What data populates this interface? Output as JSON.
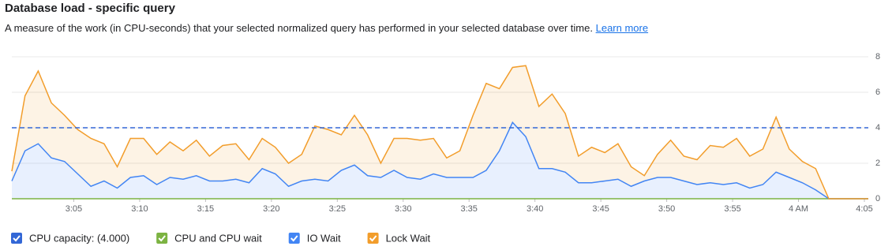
{
  "chart_data": {
    "type": "stacked-area",
    "title": "Database load - specific query",
    "subtitle": "A measure of the work (in CPU-seconds) that your selected normalized query has performed in your selected database over time.",
    "link_text": "Learn more",
    "x": [
      0.3,
      1.3,
      2.3,
      3.3,
      4.3,
      5.3,
      6.3,
      7.3,
      8.3,
      9.3,
      10.3,
      11.3,
      12.3,
      13.3,
      14.3,
      15.3,
      16.3,
      17.3,
      18.3,
      19.3,
      20.3,
      21.3,
      22.3,
      23.3,
      24.3,
      25.3,
      26.3,
      27.3,
      28.3,
      29.3,
      30.3,
      31.3,
      32.3,
      33.3,
      34.3,
      35.3,
      36.3,
      37.3,
      38.3,
      39.3,
      40.3,
      41.3,
      42.3,
      43.3,
      44.3,
      45.3,
      46.3,
      47.3,
      48.3,
      49.3,
      50.3,
      51.3,
      52.3,
      53.3,
      54.3,
      55.3,
      56.3,
      57.3,
      58.3,
      59.3,
      60.3,
      61.3,
      62.3,
      63.3,
      64.3,
      65.3
    ],
    "xlim": [
      0.3,
      65.3
    ],
    "xticks": [
      {
        "value": 5,
        "label": "3:05"
      },
      {
        "value": 10,
        "label": "3:10"
      },
      {
        "value": 15,
        "label": "3:15"
      },
      {
        "value": 20,
        "label": "3:20"
      },
      {
        "value": 25,
        "label": "3:25"
      },
      {
        "value": 30,
        "label": "3:30"
      },
      {
        "value": 35,
        "label": "3:35"
      },
      {
        "value": 40,
        "label": "3:40"
      },
      {
        "value": 45,
        "label": "3:45"
      },
      {
        "value": 50,
        "label": "3:50"
      },
      {
        "value": 55,
        "label": "3:55"
      },
      {
        "value": 60,
        "label": "4 AM"
      },
      {
        "value": 65,
        "label": "4:05"
      }
    ],
    "ylim": [
      0,
      8
    ],
    "yticks": [
      0,
      2,
      4,
      6,
      8
    ],
    "grid": true,
    "capacity": {
      "name": "CPU capacity: (4.000)",
      "value": 4,
      "color": "#3367d6"
    },
    "series": [
      {
        "name": "CPU and CPU wait",
        "color": "#7cb342",
        "values": [
          0,
          0,
          0,
          0,
          0,
          0,
          0,
          0,
          0,
          0,
          0,
          0,
          0,
          0,
          0,
          0,
          0,
          0,
          0,
          0,
          0,
          0,
          0,
          0,
          0,
          0,
          0,
          0,
          0,
          0,
          0,
          0,
          0,
          0,
          0,
          0,
          0,
          0,
          0,
          0,
          0,
          0,
          0,
          0,
          0,
          0,
          0,
          0,
          0,
          0,
          0,
          0,
          0,
          0,
          0,
          0,
          0,
          0,
          0,
          0,
          0,
          0,
          0,
          0,
          0,
          0
        ]
      },
      {
        "name": "IO Wait",
        "color": "#4285f4",
        "values": [
          1.0,
          2.7,
          3.1,
          2.3,
          2.1,
          1.4,
          0.7,
          1.0,
          0.6,
          1.2,
          1.3,
          0.8,
          1.2,
          1.1,
          1.3,
          1.0,
          1.0,
          1.1,
          0.9,
          1.7,
          1.4,
          0.7,
          1.0,
          1.1,
          1.0,
          1.6,
          1.9,
          1.3,
          1.2,
          1.6,
          1.2,
          1.1,
          1.4,
          1.2,
          1.2,
          1.2,
          1.6,
          2.7,
          4.3,
          3.5,
          1.7,
          1.7,
          1.5,
          0.9,
          0.9,
          1.0,
          1.1,
          0.7,
          1.0,
          1.2,
          1.2,
          1.0,
          0.8,
          0.9,
          0.8,
          0.9,
          0.6,
          0.8,
          1.5,
          1.2,
          0.9,
          0.5,
          0,
          0,
          0,
          0
        ]
      },
      {
        "name": "Lock Wait",
        "color": "#f29d2b",
        "values": [
          0.55,
          3.1,
          4.1,
          3.1,
          2.6,
          2.5,
          2.7,
          2.1,
          1.2,
          2.2,
          2.1,
          1.7,
          2.0,
          1.6,
          2.0,
          1.4,
          2.0,
          2.0,
          1.3,
          1.7,
          1.5,
          1.3,
          1.5,
          3.0,
          2.9,
          2.0,
          2.8,
          2.3,
          0.8,
          1.8,
          2.2,
          2.2,
          2.0,
          1.1,
          1.5,
          3.5,
          4.9,
          3.5,
          3.1,
          4.0,
          3.5,
          4.2,
          3.3,
          1.5,
          2.0,
          1.6,
          2.0,
          1.1,
          0.3,
          1.3,
          2.1,
          1.4,
          1.4,
          2.1,
          2.1,
          2.5,
          1.8,
          2.0,
          3.1,
          1.6,
          1.2,
          1.2,
          0,
          0,
          0,
          0
        ]
      }
    ]
  }
}
